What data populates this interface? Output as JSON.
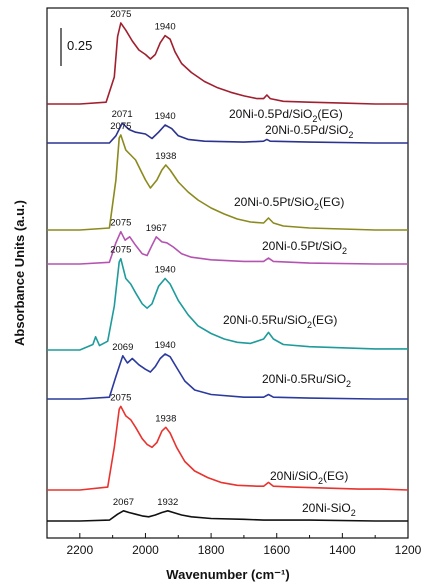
{
  "chart_data": {
    "type": "line",
    "xlabel": "Wavenumber (cm⁻¹)",
    "ylabel": "Absorbance Units (a.u.)",
    "xlim": [
      2300,
      1200
    ],
    "x_reversed": true,
    "x_ticks": [
      2200,
      2000,
      1800,
      1600,
      1400,
      1200
    ],
    "scale_bar_label": "0.25",
    "series": [
      {
        "name": "20Ni-0.5Pd/SiO₂(EG)",
        "label_main": "20Ni-0.5Pd/SiO",
        "label_sub": "2",
        "label_tail": "(EG)",
        "color": "#a02030",
        "baseline": 0.0,
        "points": [
          [
            2300,
            0.0
          ],
          [
            2200,
            0.0
          ],
          [
            2120,
            0.02
          ],
          [
            2095,
            0.3
          ],
          [
            2085,
            0.75
          ],
          [
            2075,
            0.9
          ],
          [
            2060,
            0.82
          ],
          [
            2040,
            0.7
          ],
          [
            2020,
            0.6
          ],
          [
            2000,
            0.55
          ],
          [
            1985,
            0.5
          ],
          [
            1970,
            0.55
          ],
          [
            1955,
            0.68
          ],
          [
            1940,
            0.76
          ],
          [
            1925,
            0.72
          ],
          [
            1910,
            0.58
          ],
          [
            1890,
            0.45
          ],
          [
            1860,
            0.35
          ],
          [
            1820,
            0.25
          ],
          [
            1780,
            0.18
          ],
          [
            1740,
            0.13
          ],
          [
            1700,
            0.09
          ],
          [
            1660,
            0.06
          ],
          [
            1640,
            0.06
          ],
          [
            1630,
            0.1
          ],
          [
            1620,
            0.06
          ],
          [
            1580,
            0.03
          ],
          [
            1500,
            0.02
          ],
          [
            1400,
            0.01
          ],
          [
            1300,
            0.0
          ],
          [
            1200,
            0.0
          ]
        ],
        "peaks": [
          {
            "x": 2075,
            "label": "2075"
          },
          {
            "x": 1940,
            "label": "1940"
          }
        ]
      },
      {
        "name": "20Ni-0.5Pd/SiO₂",
        "label_main": "20Ni-0.5Pd/SiO",
        "label_sub": "2",
        "label_tail": "",
        "color": "#2b3390",
        "baseline": 0.0,
        "points": [
          [
            2300,
            0.0
          ],
          [
            2200,
            0.0
          ],
          [
            2110,
            0.0
          ],
          [
            2090,
            0.08
          ],
          [
            2071,
            0.22
          ],
          [
            2050,
            0.15
          ],
          [
            2030,
            0.12
          ],
          [
            2000,
            0.1
          ],
          [
            1980,
            0.05
          ],
          [
            1960,
            0.12
          ],
          [
            1940,
            0.2
          ],
          [
            1920,
            0.16
          ],
          [
            1900,
            0.08
          ],
          [
            1870,
            0.04
          ],
          [
            1820,
            0.02
          ],
          [
            1700,
            0.01
          ],
          [
            1640,
            0.02
          ],
          [
            1630,
            0.04
          ],
          [
            1620,
            0.02
          ],
          [
            1500,
            0.01
          ],
          [
            1300,
            0.0
          ],
          [
            1200,
            0.0
          ]
        ],
        "peaks": [
          {
            "x": 2071,
            "label": "2071"
          },
          {
            "x": 1940,
            "label": "1940"
          }
        ]
      },
      {
        "name": "20Ni-0.5Pt/SiO₂(EG)",
        "label_main": "20Ni-0.5Pt/SiO",
        "label_sub": "2",
        "label_tail": "(EG)",
        "color": "#8b8a1e",
        "baseline": 0.0,
        "points": [
          [
            2300,
            0.0
          ],
          [
            2200,
            0.0
          ],
          [
            2110,
            0.02
          ],
          [
            2090,
            0.5
          ],
          [
            2080,
            0.92
          ],
          [
            2075,
            0.95
          ],
          [
            2060,
            0.8
          ],
          [
            2045,
            0.75
          ],
          [
            2030,
            0.7
          ],
          [
            2015,
            0.6
          ],
          [
            2000,
            0.5
          ],
          [
            1985,
            0.42
          ],
          [
            1965,
            0.5
          ],
          [
            1950,
            0.6
          ],
          [
            1938,
            0.65
          ],
          [
            1925,
            0.6
          ],
          [
            1900,
            0.48
          ],
          [
            1870,
            0.38
          ],
          [
            1840,
            0.3
          ],
          [
            1800,
            0.22
          ],
          [
            1760,
            0.16
          ],
          [
            1720,
            0.11
          ],
          [
            1680,
            0.08
          ],
          [
            1640,
            0.07
          ],
          [
            1625,
            0.12
          ],
          [
            1610,
            0.07
          ],
          [
            1580,
            0.04
          ],
          [
            1500,
            0.02
          ],
          [
            1400,
            0.01
          ],
          [
            1300,
            0.0
          ],
          [
            1200,
            0.0
          ]
        ],
        "peaks": [
          {
            "x": 2075,
            "label": "2075"
          },
          {
            "x": 1938,
            "label": "1938"
          }
        ]
      },
      {
        "name": "20Ni-0.5Pt/SiO₂",
        "label_main": "20Ni-0.5Pt/SiO",
        "label_sub": "2",
        "label_tail": "",
        "color": "#b454b0",
        "baseline": 0.0,
        "points": [
          [
            2300,
            0.0
          ],
          [
            2200,
            0.0
          ],
          [
            2110,
            0.02
          ],
          [
            2090,
            0.25
          ],
          [
            2075,
            0.38
          ],
          [
            2062,
            0.28
          ],
          [
            2048,
            0.32
          ],
          [
            2030,
            0.22
          ],
          [
            2010,
            0.12
          ],
          [
            1995,
            0.1
          ],
          [
            1980,
            0.22
          ],
          [
            1967,
            0.32
          ],
          [
            1950,
            0.26
          ],
          [
            1935,
            0.25
          ],
          [
            1915,
            0.2
          ],
          [
            1890,
            0.12
          ],
          [
            1860,
            0.08
          ],
          [
            1800,
            0.05
          ],
          [
            1700,
            0.03
          ],
          [
            1640,
            0.03
          ],
          [
            1625,
            0.07
          ],
          [
            1610,
            0.03
          ],
          [
            1500,
            0.01
          ],
          [
            1300,
            0.0
          ],
          [
            1200,
            0.0
          ]
        ],
        "peaks": [
          {
            "x": 2075,
            "label": "2075"
          },
          {
            "x": 1967,
            "label": "1967"
          }
        ]
      },
      {
        "name": "20Ni-0.5Ru/SiO₂(EG)",
        "label_main": "20Ni-0.5Ru/SiO",
        "label_sub": "2",
        "label_tail": "(EG)",
        "color": "#1f9b9b",
        "baseline": 0.0,
        "points": [
          [
            2300,
            0.0
          ],
          [
            2200,
            0.0
          ],
          [
            2160,
            0.05
          ],
          [
            2152,
            0.12
          ],
          [
            2140,
            0.04
          ],
          [
            2115,
            0.08
          ],
          [
            2095,
            0.4
          ],
          [
            2080,
            0.8
          ],
          [
            2075,
            0.83
          ],
          [
            2060,
            0.65
          ],
          [
            2045,
            0.6
          ],
          [
            2030,
            0.52
          ],
          [
            2010,
            0.42
          ],
          [
            1995,
            0.38
          ],
          [
            1980,
            0.42
          ],
          [
            1960,
            0.58
          ],
          [
            1940,
            0.65
          ],
          [
            1925,
            0.6
          ],
          [
            1900,
            0.45
          ],
          [
            1870,
            0.32
          ],
          [
            1840,
            0.22
          ],
          [
            1800,
            0.15
          ],
          [
            1760,
            0.1
          ],
          [
            1720,
            0.07
          ],
          [
            1680,
            0.06
          ],
          [
            1640,
            0.1
          ],
          [
            1625,
            0.16
          ],
          [
            1610,
            0.1
          ],
          [
            1580,
            0.05
          ],
          [
            1500,
            0.03
          ],
          [
            1400,
            0.02
          ],
          [
            1300,
            0.01
          ],
          [
            1200,
            0.01
          ]
        ],
        "peaks": [
          {
            "x": 2075,
            "label": "2075"
          },
          {
            "x": 1940,
            "label": "1940"
          }
        ]
      },
      {
        "name": "20Ni-0.5Ru/SiO₂",
        "label_main": "20Ni-0.5Ru/SiO",
        "label_sub": "2",
        "label_tail": "",
        "color": "#2b3a9e",
        "baseline": 0.0,
        "points": [
          [
            2300,
            0.0
          ],
          [
            2200,
            0.0
          ],
          [
            2110,
            0.02
          ],
          [
            2090,
            0.25
          ],
          [
            2069,
            0.48
          ],
          [
            2055,
            0.4
          ],
          [
            2040,
            0.45
          ],
          [
            2020,
            0.38
          ],
          [
            2000,
            0.33
          ],
          [
            1985,
            0.3
          ],
          [
            1970,
            0.36
          ],
          [
            1955,
            0.45
          ],
          [
            1940,
            0.5
          ],
          [
            1925,
            0.47
          ],
          [
            1905,
            0.35
          ],
          [
            1880,
            0.2
          ],
          [
            1850,
            0.1
          ],
          [
            1800,
            0.05
          ],
          [
            1700,
            0.02
          ],
          [
            1640,
            0.02
          ],
          [
            1625,
            0.05
          ],
          [
            1610,
            0.02
          ],
          [
            1500,
            0.01
          ],
          [
            1300,
            0.0
          ],
          [
            1200,
            0.0
          ]
        ],
        "peaks": [
          {
            "x": 2069,
            "label": "2069"
          },
          {
            "x": 1940,
            "label": "1940"
          }
        ]
      },
      {
        "name": "20Ni/SiO₂(EG)",
        "label_main": "20Ni/SiO",
        "label_sub": "2",
        "label_tail": "(EG)",
        "color": "#e8332f",
        "baseline": 0.0,
        "points": [
          [
            2300,
            0.0
          ],
          [
            2200,
            0.0
          ],
          [
            2115,
            0.03
          ],
          [
            2095,
            0.45
          ],
          [
            2080,
            0.85
          ],
          [
            2075,
            0.88
          ],
          [
            2060,
            0.78
          ],
          [
            2045,
            0.74
          ],
          [
            2030,
            0.66
          ],
          [
            2010,
            0.54
          ],
          [
            1995,
            0.48
          ],
          [
            1980,
            0.45
          ],
          [
            1965,
            0.5
          ],
          [
            1950,
            0.62
          ],
          [
            1938,
            0.66
          ],
          [
            1925,
            0.6
          ],
          [
            1905,
            0.45
          ],
          [
            1880,
            0.3
          ],
          [
            1850,
            0.2
          ],
          [
            1810,
            0.13
          ],
          [
            1770,
            0.08
          ],
          [
            1720,
            0.05
          ],
          [
            1660,
            0.04
          ],
          [
            1640,
            0.04
          ],
          [
            1625,
            0.08
          ],
          [
            1610,
            0.04
          ],
          [
            1550,
            0.03
          ],
          [
            1450,
            0.02
          ],
          [
            1350,
            0.01
          ],
          [
            1280,
            0.01
          ],
          [
            1200,
            0.0
          ]
        ],
        "peaks": [
          {
            "x": 2075,
            "label": "2075"
          },
          {
            "x": 1938,
            "label": "1938"
          }
        ]
      },
      {
        "name": "20Ni-SiO₂",
        "label_main": "20Ni-SiO",
        "label_sub": "2",
        "label_tail": "",
        "color": "#111111",
        "baseline": 0.0,
        "points": [
          [
            2300,
            0.0
          ],
          [
            2200,
            0.0
          ],
          [
            2110,
            0.01
          ],
          [
            2085,
            0.08
          ],
          [
            2067,
            0.12
          ],
          [
            2050,
            0.1
          ],
          [
            2030,
            0.08
          ],
          [
            2010,
            0.06
          ],
          [
            1990,
            0.05
          ],
          [
            1970,
            0.07
          ],
          [
            1950,
            0.1
          ],
          [
            1932,
            0.12
          ],
          [
            1915,
            0.1
          ],
          [
            1890,
            0.07
          ],
          [
            1860,
            0.05
          ],
          [
            1800,
            0.03
          ],
          [
            1700,
            0.02
          ],
          [
            1640,
            0.01
          ],
          [
            1500,
            0.01
          ],
          [
            1300,
            0.0
          ],
          [
            1200,
            0.0
          ]
        ],
        "peaks": [
          {
            "x": 2067,
            "label": "2067"
          },
          {
            "x": 1932,
            "label": "1932"
          }
        ]
      }
    ]
  }
}
